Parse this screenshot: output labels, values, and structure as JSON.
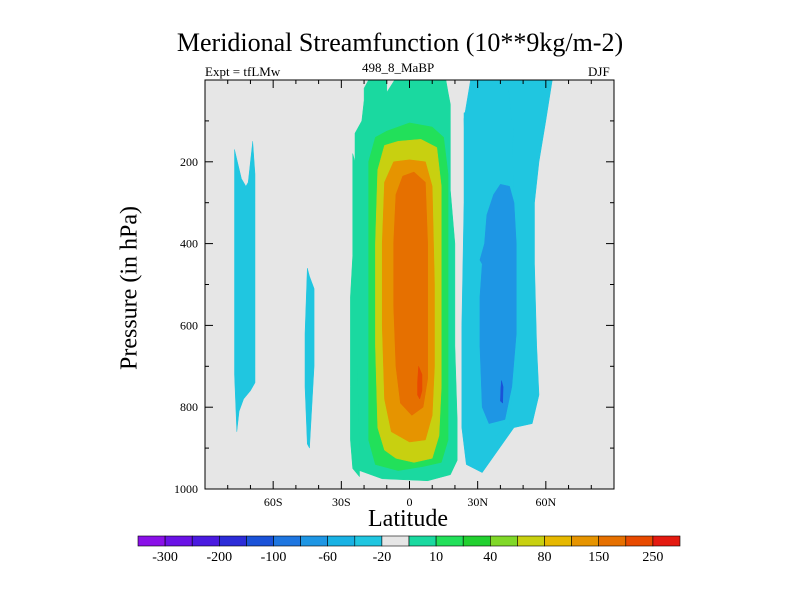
{
  "chart_data": {
    "type": "heatmap",
    "subtype": "filled-contour",
    "title": "Meridional Streamfunction (10**9kg/m-2)",
    "left_label": "Expt = tfLMw",
    "center_label": "498_8_MaBP",
    "right_label": "DJF",
    "xlabel": "Latitude",
    "ylabel": "Pressure (in hPa)",
    "xlim": [
      -90,
      90
    ],
    "ylim": [
      1000,
      0
    ],
    "x_ticks": [
      {
        "value": -60,
        "label": "60S"
      },
      {
        "value": -30,
        "label": "30S"
      },
      {
        "value": 0,
        "label": "0"
      },
      {
        "value": 30,
        "label": "30N"
      },
      {
        "value": 60,
        "label": "60N"
      }
    ],
    "y_ticks": [
      {
        "value": 200,
        "label": "200"
      },
      {
        "value": 400,
        "label": "400"
      },
      {
        "value": 600,
        "label": "600"
      },
      {
        "value": 800,
        "label": "800"
      },
      {
        "value": 1000,
        "label": "1000"
      }
    ],
    "background_color": "#e6e6e6",
    "colorbar": {
      "colors": [
        "#8a10e8",
        "#6a12e6",
        "#4a1ae0",
        "#2c2cd8",
        "#1a52d8",
        "#1e76e0",
        "#1e96e4",
        "#19b2e4",
        "#20c6e0",
        "#e6e6e6",
        "#1ad9a0",
        "#22e05a",
        "#22d030",
        "#80d828",
        "#c8d010",
        "#e6b800",
        "#e69400",
        "#e67000",
        "#e84a00",
        "#e41a10"
      ],
      "labels": [
        "-300",
        "-200",
        "-100",
        "-60",
        "-20",
        "10",
        "40",
        "80",
        "150",
        "250"
      ]
    },
    "regions": [
      {
        "level": -20,
        "color": "#20c6e0",
        "points": [
          [
            -77,
            170
          ],
          [
            -74,
            241
          ],
          [
            -72,
            260
          ],
          [
            -71,
            250
          ],
          [
            -69,
            150
          ],
          [
            -68,
            230
          ],
          [
            -68,
            300
          ],
          [
            -68,
            500
          ],
          [
            -68,
            700
          ],
          [
            -68,
            740
          ],
          [
            -70,
            760
          ],
          [
            -73,
            780
          ],
          [
            -75,
            810
          ],
          [
            -76,
            860
          ],
          [
            -77,
            720
          ],
          [
            -77,
            500
          ],
          [
            -77,
            300
          ]
        ]
      },
      {
        "level": -20,
        "color": "#20c6e0",
        "points": [
          [
            -45,
            460
          ],
          [
            -44,
            480
          ],
          [
            -42,
            510
          ],
          [
            -42,
            600
          ],
          [
            -42,
            700
          ],
          [
            -43,
            800
          ],
          [
            -44,
            900
          ],
          [
            -45,
            890
          ],
          [
            -46,
            750
          ],
          [
            -46,
            620
          ]
        ]
      },
      {
        "level": 10,
        "color": "#1ad9a0",
        "points": [
          [
            -22,
            940
          ],
          [
            -24,
            880
          ],
          [
            -24,
            770
          ],
          [
            -24,
            520
          ],
          [
            -24,
            300
          ],
          [
            -24,
            130
          ],
          [
            -21,
            100
          ],
          [
            -20,
            50
          ],
          [
            -20,
            20
          ],
          [
            -18,
            0
          ],
          [
            -10,
            0
          ],
          [
            -10,
            30
          ],
          [
            -6,
            -5
          ],
          [
            8,
            -5
          ],
          [
            9,
            0
          ],
          [
            12,
            0
          ],
          [
            16,
            0
          ],
          [
            17,
            30
          ],
          [
            18,
            60
          ],
          [
            18,
            100
          ],
          [
            18,
            270
          ],
          [
            20,
            400
          ],
          [
            20,
            650
          ],
          [
            21,
            830
          ],
          [
            21,
            930
          ],
          [
            18,
            965
          ],
          [
            8,
            980
          ],
          [
            -12,
            975
          ],
          [
            -22,
            955
          ]
        ]
      },
      {
        "level": 10,
        "color": "#1ad9a0",
        "points": [
          [
            -25,
            180
          ],
          [
            -25,
            430
          ],
          [
            -26,
            530
          ],
          [
            -26,
            750
          ],
          [
            -26,
            880
          ],
          [
            -25,
            950
          ],
          [
            -22,
            970
          ],
          [
            -22,
            900
          ],
          [
            -23,
            700
          ],
          [
            -23,
            500
          ],
          [
            -23,
            300
          ],
          [
            -24,
            200
          ]
        ]
      },
      {
        "level": -20,
        "color": "#20c6e0",
        "points": [
          [
            36,
            -5
          ],
          [
            37,
            40
          ],
          [
            37,
            130
          ],
          [
            38,
            350
          ],
          [
            39,
            420
          ],
          [
            41,
            470
          ],
          [
            43,
            500
          ],
          [
            46,
            520
          ],
          [
            49,
            460
          ],
          [
            53,
            300
          ],
          [
            56,
            200
          ],
          [
            58,
            100
          ],
          [
            60,
            30
          ],
          [
            59,
            -5
          ]
        ]
      },
      {
        "level": -20,
        "color": "#20c6e0",
        "points": [
          [
            24,
            80
          ],
          [
            24,
            300
          ],
          [
            23,
            600
          ],
          [
            23,
            850
          ],
          [
            25,
            940
          ],
          [
            32,
            960
          ],
          [
            39,
            905
          ],
          [
            46,
            850
          ],
          [
            54,
            840
          ],
          [
            57,
            770
          ],
          [
            56,
            650
          ],
          [
            55,
            450
          ],
          [
            55,
            300
          ],
          [
            57,
            200
          ],
          [
            60,
            100
          ],
          [
            63,
            -5
          ],
          [
            47,
            -5
          ],
          [
            46,
            10
          ],
          [
            46,
            100
          ],
          [
            45,
            250
          ],
          [
            44,
            400
          ],
          [
            44,
            550
          ],
          [
            44,
            650
          ],
          [
            43,
            820
          ],
          [
            38,
            850
          ],
          [
            30,
            855
          ],
          [
            28,
            800
          ],
          [
            28,
            600
          ],
          [
            28,
            500
          ],
          [
            27,
            300
          ],
          [
            26,
            180
          ],
          [
            25,
            80
          ]
        ]
      },
      {
        "level": -20,
        "color": "#20c6e0",
        "points": [
          [
            24,
            95
          ],
          [
            25,
            300
          ],
          [
            24,
            500
          ],
          [
            24,
            700
          ],
          [
            26,
            850
          ],
          [
            30,
            880
          ],
          [
            38,
            870
          ],
          [
            44,
            840
          ],
          [
            46,
            700
          ],
          [
            46,
            550
          ],
          [
            46,
            300
          ],
          [
            45,
            100
          ],
          [
            43,
            -5
          ],
          [
            27,
            -5
          ]
        ]
      },
      {
        "level": -60,
        "color": "#1e96e4",
        "points": [
          [
            31,
            440
          ],
          [
            32,
            450
          ],
          [
            31,
            530
          ],
          [
            31,
            650
          ],
          [
            32,
            800
          ],
          [
            35,
            840
          ],
          [
            42,
            830
          ],
          [
            45,
            750
          ],
          [
            47,
            620
          ],
          [
            47,
            490
          ],
          [
            47,
            400
          ],
          [
            46,
            300
          ],
          [
            44,
            260
          ],
          [
            40,
            255
          ],
          [
            37,
            280
          ],
          [
            34,
            330
          ],
          [
            33,
            400
          ]
        ]
      },
      {
        "level": -100,
        "color": "#1a52d8",
        "points": [
          [
            40.5,
            735
          ],
          [
            41.2,
            750
          ],
          [
            41,
            790
          ],
          [
            40,
            785
          ],
          [
            40.2,
            755
          ]
        ]
      },
      {
        "level": 40,
        "color": "#22e05a",
        "points": [
          [
            -15,
            940
          ],
          [
            -18,
            880
          ],
          [
            -18,
            700
          ],
          [
            -18,
            450
          ],
          [
            -18,
            200
          ],
          [
            -15,
            140
          ],
          [
            -10,
            125
          ],
          [
            0,
            105
          ],
          [
            10,
            115
          ],
          [
            15,
            140
          ],
          [
            17,
            230
          ],
          [
            17,
            500
          ],
          [
            17,
            750
          ],
          [
            17,
            880
          ],
          [
            14,
            935
          ],
          [
            6,
            945
          ],
          [
            -5,
            955
          ]
        ]
      },
      {
        "level": 80,
        "color": "#c8d010",
        "points": [
          [
            -11,
            905
          ],
          [
            -14,
            850
          ],
          [
            -15,
            650
          ],
          [
            -15,
            400
          ],
          [
            -14,
            220
          ],
          [
            -11,
            160
          ],
          [
            -5,
            150
          ],
          [
            5,
            145
          ],
          [
            12,
            165
          ],
          [
            14,
            260
          ],
          [
            14,
            500
          ],
          [
            14,
            750
          ],
          [
            13,
            870
          ],
          [
            10,
            925
          ],
          [
            2,
            935
          ],
          [
            -6,
            925
          ]
        ]
      },
      {
        "level": 150,
        "color": "#e69400",
        "points": [
          [
            -8,
            860
          ],
          [
            -11,
            780
          ],
          [
            -12,
            600
          ],
          [
            -12,
            400
          ],
          [
            -11,
            250
          ],
          [
            -7,
            200
          ],
          [
            0,
            195
          ],
          [
            7,
            200
          ],
          [
            10,
            260
          ],
          [
            11,
            500
          ],
          [
            11,
            700
          ],
          [
            10,
            820
          ],
          [
            7,
            880
          ],
          [
            0,
            885
          ]
        ]
      },
      {
        "level": 250,
        "color": "#e67000",
        "points": [
          [
            -4,
            790
          ],
          [
            -6,
            700
          ],
          [
            -7,
            550
          ],
          [
            -7,
            400
          ],
          [
            -6,
            280
          ],
          [
            -3,
            235
          ],
          [
            2,
            225
          ],
          [
            7,
            250
          ],
          [
            8,
            400
          ],
          [
            8,
            600
          ],
          [
            8,
            730
          ],
          [
            6,
            800
          ],
          [
            1,
            820
          ]
        ]
      },
      {
        "level": 300,
        "color": "#e84a00",
        "points": [
          [
            4,
            700
          ],
          [
            5.5,
            720
          ],
          [
            5.5,
            760
          ],
          [
            4.5,
            780
          ],
          [
            3.5,
            770
          ],
          [
            3.5,
            740
          ]
        ]
      }
    ]
  }
}
